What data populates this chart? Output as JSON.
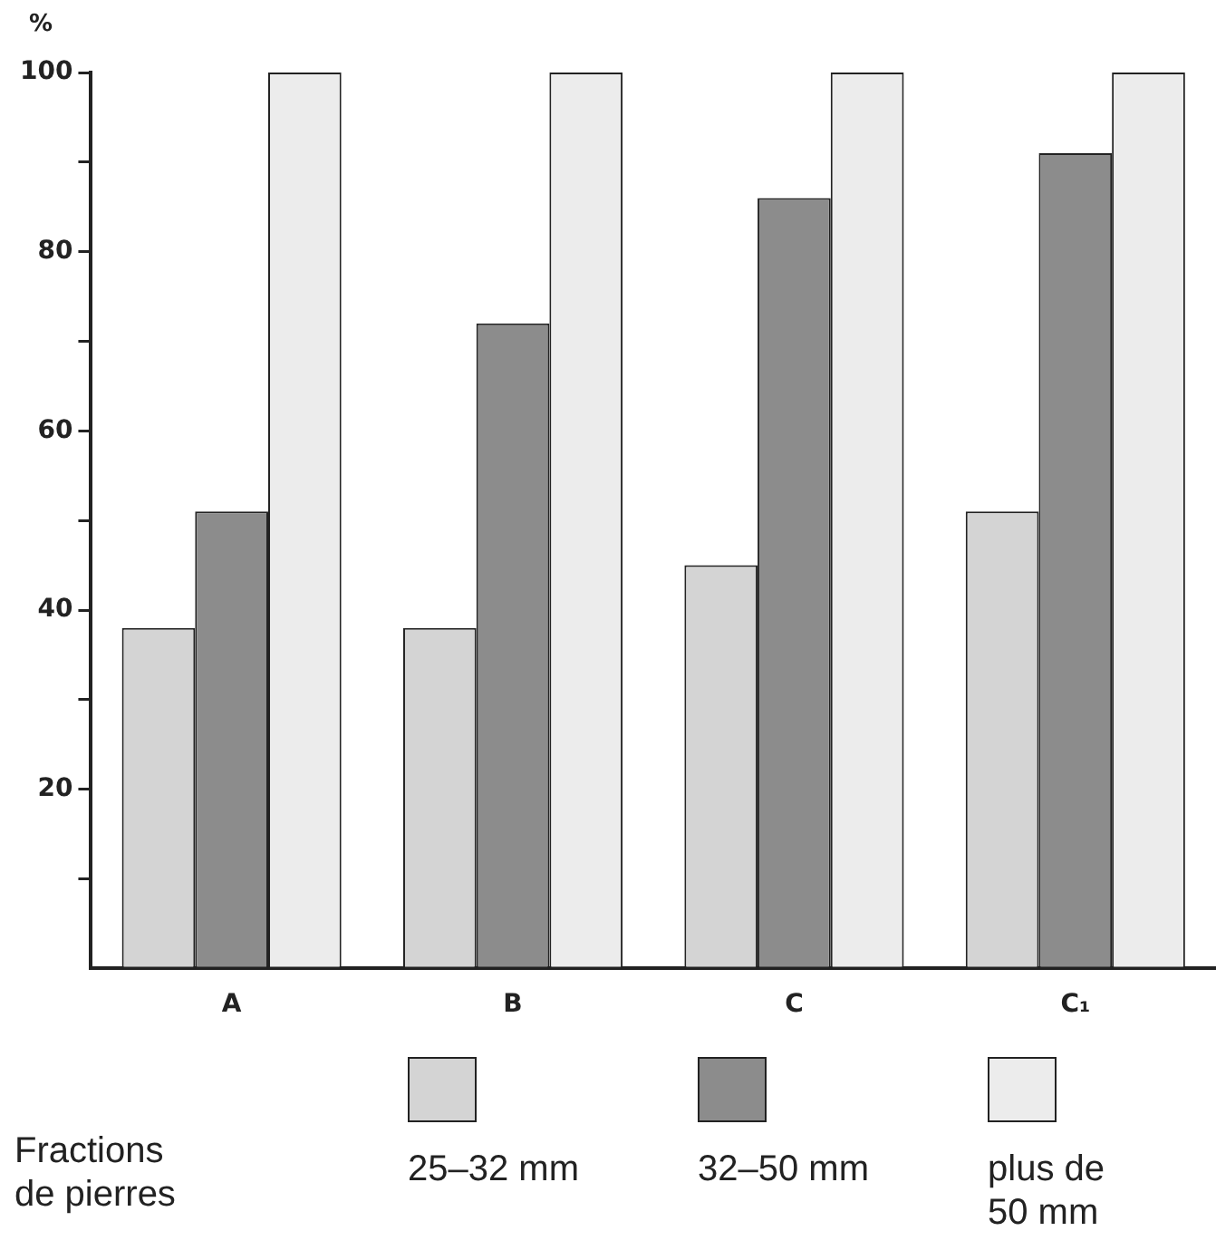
{
  "chart_data": {
    "type": "bar",
    "ylabel": "%",
    "legend_title": "Fractions de pierres",
    "legend": "bottom",
    "grid": false,
    "categories": [
      "A",
      "B",
      "C",
      "C₁"
    ],
    "ylim": [
      0,
      100
    ],
    "yticks": [
      {
        "value": 10,
        "label": null
      },
      20,
      {
        "value": 30,
        "label": null
      },
      40,
      {
        "value": 50,
        "label": null
      },
      60,
      {
        "value": 70,
        "label": null
      },
      80,
      {
        "value": 90,
        "label": null
      },
      100
    ],
    "series": [
      {
        "name": "25–32 mm",
        "color": "#d4d4d4",
        "values": [
          38,
          38,
          45,
          51
        ]
      },
      {
        "name": "32–50 mm",
        "color": "#8c8c8c",
        "values": [
          51,
          72,
          86,
          91
        ]
      },
      {
        "name": "plus de 50 mm",
        "color": "#ececec",
        "values": [
          100,
          100,
          100,
          100
        ]
      }
    ]
  }
}
